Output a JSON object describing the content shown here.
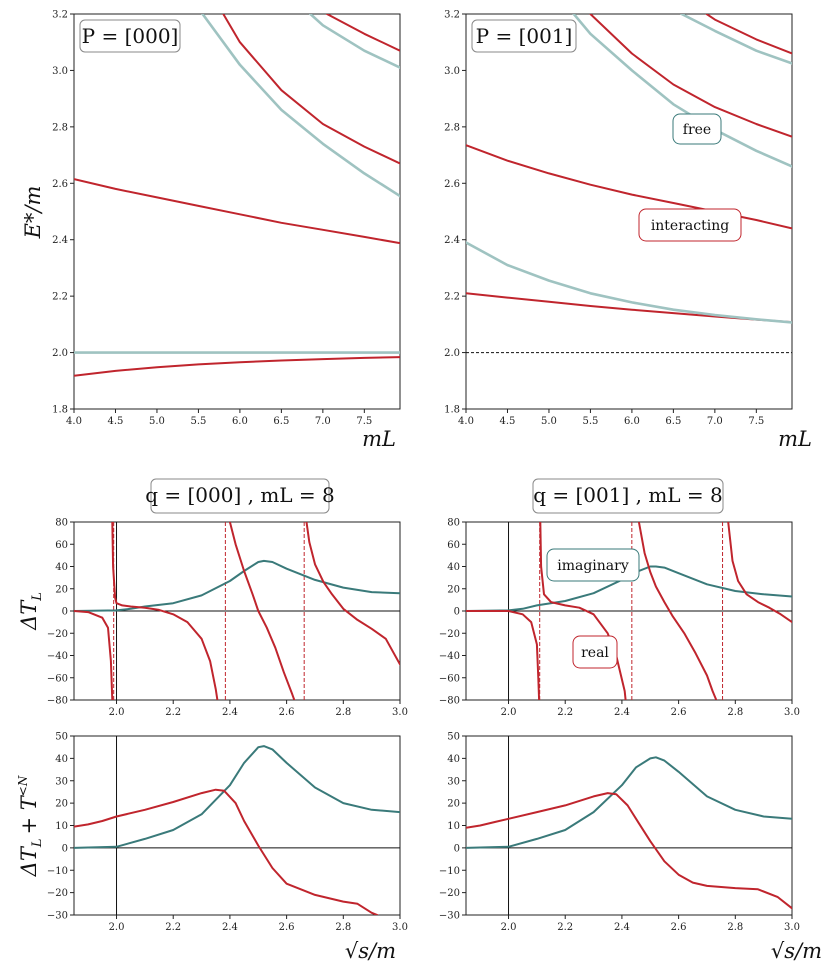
{
  "colors": {
    "interacting": "#c0252d",
    "free": "#9fc3c1",
    "imag": "#3a7a7a",
    "frame": "#222222",
    "thresh": "#111111"
  },
  "labels": {
    "ylabel_top": "E*/m",
    "ylabel_mid": "ΔT",
    "ylabel_mid_sub": "L",
    "ylabel_bot": "ΔT",
    "ylabel_bot_sub": "L",
    "ylabel_bot_plus": "+ T",
    "ylabel_bot_sup": "<N",
    "xlabel_top_left": "mL",
    "xlabel_top_right": "mL",
    "xlabel_bot_left": "√s/m",
    "xlabel_bot_right": "√s/m",
    "title_p000": "P = [000]",
    "title_p001": "P = [001]",
    "title_q000": "q = [000] , mL = 8",
    "title_q001": "q = [001] , mL = 8",
    "annot_free": "free",
    "annot_interacting": "interacting",
    "annot_imaginary": "imaginary",
    "annot_real": "real"
  },
  "chart_data": [
    {
      "id": "spectrum_P000",
      "type": "line",
      "title": "P = [000]",
      "xlabel": "mL",
      "ylabel": "E*/m",
      "xlim": [
        4.0,
        7.93
      ],
      "ylim": [
        1.8,
        3.2
      ],
      "xticks": [
        "4.0",
        "4.5",
        "5.0",
        "5.5",
        "6.0",
        "6.5",
        "7.0",
        "7.5"
      ],
      "yticks": [
        "1.8",
        "2.0",
        "2.2",
        "2.4",
        "2.6",
        "2.8",
        "3.0",
        "3.2"
      ],
      "threshold": 2.0,
      "series": [
        {
          "name": "interacting",
          "x": [
            4.0,
            4.5,
            5.0,
            5.5,
            6.0,
            6.5,
            7.0,
            7.5,
            7.93
          ],
          "values": [
            1.918,
            1.935,
            1.948,
            1.958,
            1.966,
            1.972,
            1.977,
            1.981,
            1.984
          ]
        },
        {
          "name": "free",
          "x": [
            4.0,
            7.93
          ],
          "values": [
            2.0,
            2.0
          ]
        },
        {
          "name": "interacting",
          "x": [
            4.0,
            4.5,
            5.0,
            5.5,
            6.0,
            6.5,
            7.0,
            7.5,
            7.93
          ],
          "values": [
            2.615,
            2.58,
            2.55,
            2.52,
            2.49,
            2.46,
            2.435,
            2.41,
            2.388
          ]
        },
        {
          "name": "free",
          "x": [
            5.55,
            6.0,
            6.5,
            7.0,
            7.5,
            7.93
          ],
          "values": [
            3.2,
            3.02,
            2.86,
            2.74,
            2.635,
            2.555
          ]
        },
        {
          "name": "interacting",
          "x": [
            5.8,
            6.0,
            6.5,
            7.0,
            7.5,
            7.93
          ],
          "values": [
            3.2,
            3.1,
            2.93,
            2.81,
            2.73,
            2.67
          ]
        },
        {
          "name": "free",
          "x": [
            6.85,
            7.0,
            7.5,
            7.93
          ],
          "values": [
            3.2,
            3.16,
            3.07,
            3.01
          ]
        },
        {
          "name": "interacting",
          "x": [
            7.05,
            7.5,
            7.93
          ],
          "values": [
            3.2,
            3.13,
            3.07
          ]
        }
      ]
    },
    {
      "id": "spectrum_P001",
      "type": "line",
      "title": "P = [001]",
      "xlabel": "mL",
      "ylabel": "E*/m",
      "xlim": [
        4.0,
        7.93
      ],
      "ylim": [
        1.8,
        3.2
      ],
      "xticks": [
        "4.0",
        "4.5",
        "5.0",
        "5.5",
        "6.0",
        "6.5",
        "7.0",
        "7.5"
      ],
      "yticks": [
        "1.8",
        "2.0",
        "2.2",
        "2.4",
        "2.6",
        "2.8",
        "3.0",
        "3.2"
      ],
      "threshold": 2.0,
      "series": [
        {
          "name": "interacting",
          "x": [
            4.0,
            4.5,
            5.0,
            5.5,
            6.0,
            6.5,
            7.0,
            7.5,
            7.93
          ],
          "values": [
            2.21,
            2.195,
            2.18,
            2.165,
            2.152,
            2.14,
            2.128,
            2.117,
            2.108
          ]
        },
        {
          "name": "free",
          "x": [
            4.0,
            4.5,
            5.0,
            5.5,
            6.0,
            6.5,
            7.0,
            7.5,
            7.93
          ],
          "values": [
            2.39,
            2.31,
            2.255,
            2.21,
            2.178,
            2.152,
            2.133,
            2.118,
            2.107
          ]
        },
        {
          "name": "interacting",
          "x": [
            4.0,
            4.5,
            5.0,
            5.5,
            6.0,
            6.5,
            7.0,
            7.5,
            7.93
          ],
          "values": [
            2.735,
            2.68,
            2.635,
            2.595,
            2.56,
            2.53,
            2.5,
            2.47,
            2.44
          ]
        },
        {
          "name": "free",
          "x": [
            5.3,
            5.5,
            6.0,
            6.5,
            7.0,
            7.5,
            7.93
          ],
          "values": [
            3.2,
            3.13,
            3.0,
            2.88,
            2.79,
            2.715,
            2.66
          ]
        },
        {
          "name": "interacting",
          "x": [
            5.5,
            6.0,
            6.5,
            7.0,
            7.5,
            7.93
          ],
          "values": [
            3.2,
            3.06,
            2.95,
            2.87,
            2.81,
            2.765
          ]
        },
        {
          "name": "free",
          "x": [
            6.6,
            7.0,
            7.5,
            7.93
          ],
          "values": [
            3.2,
            3.14,
            3.07,
            3.025
          ]
        },
        {
          "name": "interacting",
          "x": [
            6.9,
            7.0,
            7.5,
            7.93
          ],
          "values": [
            3.2,
            3.18,
            3.11,
            3.06
          ]
        }
      ]
    },
    {
      "id": "deltaT_q000",
      "type": "line",
      "title": "q = [000] , mL = 8",
      "xlabel": "",
      "ylabel": "ΔT_L",
      "xlim": [
        1.85,
        3.0
      ],
      "ylim": [
        -80,
        80
      ],
      "xticks": [
        "2.0",
        "2.2",
        "2.4",
        "2.6",
        "2.8",
        "3.0"
      ],
      "yticks": [
        "−80",
        "−60",
        "−40",
        "−20",
        "0",
        "20",
        "40",
        "60",
        "80"
      ],
      "vlines_solid": [
        2.0
      ],
      "vlines_dashed": [
        1.99,
        2.384,
        2.662
      ],
      "series": [
        {
          "name": "imaginary",
          "x": [
            1.85,
            2.0,
            2.05,
            2.1,
            2.2,
            2.3,
            2.4,
            2.45,
            2.5,
            2.52,
            2.55,
            2.6,
            2.7,
            2.8,
            2.9,
            3.0
          ],
          "values": [
            0,
            0.5,
            2,
            4,
            7,
            14,
            27,
            36,
            44,
            45,
            44,
            38,
            28,
            21,
            17,
            16
          ]
        },
        {
          "name": "real",
          "x": [
            1.85,
            1.9,
            1.95,
            1.97,
            1.98,
            1.985
          ],
          "values": [
            0,
            -1,
            -6,
            -15,
            -45,
            -80
          ]
        },
        {
          "name": "real",
          "x": [
            1.985,
            1.988,
            1.995,
            2.0,
            2.02,
            2.05,
            2.1,
            2.15,
            2.2,
            2.25,
            2.3,
            2.33,
            2.35,
            2.356
          ],
          "values": [
            80,
            40,
            12,
            7,
            5,
            4,
            3,
            1,
            -3,
            -10,
            -25,
            -45,
            -70,
            -80
          ]
        },
        {
          "name": "real",
          "x": [
            2.4,
            2.42,
            2.45,
            2.48,
            2.5,
            2.53,
            2.56,
            2.59,
            2.62,
            2.627
          ],
          "values": [
            80,
            60,
            36,
            15,
            0,
            -15,
            -33,
            -55,
            -75,
            -80
          ]
        },
        {
          "name": "real",
          "x": [
            2.67,
            2.68,
            2.7,
            2.73,
            2.76,
            2.8,
            2.85,
            2.9,
            2.95,
            3.0
          ],
          "values": [
            80,
            62,
            42,
            26,
            15,
            2,
            -8,
            -16,
            -25,
            -48
          ]
        }
      ]
    },
    {
      "id": "deltaT_q001",
      "type": "line",
      "title": "q = [001] , mL = 8",
      "xlabel": "",
      "ylabel": "ΔT_L",
      "xlim": [
        1.85,
        3.0
      ],
      "ylim": [
        -80,
        80
      ],
      "xticks": [
        "2.0",
        "2.2",
        "2.4",
        "2.6",
        "2.8",
        "3.0"
      ],
      "yticks": [
        "−80",
        "−60",
        "−40",
        "−20",
        "0",
        "20",
        "40",
        "60",
        "80"
      ],
      "vlines_solid": [
        2.0
      ],
      "vlines_dashed": [
        2.11,
        2.435,
        2.755
      ],
      "series": [
        {
          "name": "imaginary",
          "x": [
            1.85,
            2.0,
            2.05,
            2.1,
            2.2,
            2.3,
            2.4,
            2.45,
            2.5,
            2.52,
            2.55,
            2.6,
            2.7,
            2.8,
            2.9,
            3.0
          ],
          "values": [
            0,
            0.5,
            2,
            5,
            9,
            16,
            28,
            35,
            40,
            40,
            39,
            34,
            24,
            18,
            15,
            13
          ]
        },
        {
          "name": "real",
          "x": [
            1.85,
            2.0,
            2.05,
            2.08,
            2.1,
            2.105,
            2.108
          ],
          "values": [
            0,
            0,
            -3,
            -10,
            -30,
            -60,
            -80
          ]
        },
        {
          "name": "real",
          "x": [
            2.112,
            2.115,
            2.125,
            2.15,
            2.2,
            2.25,
            2.3,
            2.35,
            2.38,
            2.41,
            2.413
          ],
          "values": [
            80,
            40,
            15,
            8,
            5,
            3,
            -3,
            -20,
            -40,
            -72,
            -80
          ]
        },
        {
          "name": "real",
          "x": [
            2.46,
            2.48,
            2.5,
            2.52,
            2.55,
            2.58,
            2.62,
            2.66,
            2.7,
            2.72,
            2.733
          ],
          "values": [
            80,
            52,
            35,
            22,
            8,
            -5,
            -20,
            -38,
            -58,
            -72,
            -80
          ]
        },
        {
          "name": "real",
          "x": [
            2.775,
            2.79,
            2.81,
            2.84,
            2.88,
            2.92,
            2.96,
            3.0
          ],
          "values": [
            80,
            45,
            27,
            15,
            8,
            3,
            -3,
            -10
          ]
        }
      ]
    },
    {
      "id": "deltaT_plus_q000",
      "type": "line",
      "title": "",
      "xlabel": "√s/m",
      "ylabel": "ΔT_L + T_L^<N",
      "xlim": [
        1.85,
        3.0
      ],
      "ylim": [
        -30,
        50
      ],
      "xticks": [
        "2.0",
        "2.2",
        "2.4",
        "2.6",
        "2.8",
        "3.0"
      ],
      "yticks": [
        "−30",
        "−20",
        "−10",
        "0",
        "10",
        "20",
        "30",
        "40",
        "50"
      ],
      "vlines_solid": [
        2.0
      ],
      "series": [
        {
          "name": "imaginary",
          "x": [
            1.85,
            2.0,
            2.1,
            2.2,
            2.3,
            2.4,
            2.45,
            2.5,
            2.52,
            2.55,
            2.6,
            2.7,
            2.8,
            2.9,
            3.0
          ],
          "values": [
            0,
            0.5,
            4,
            8,
            15,
            28,
            38,
            45,
            45.5,
            44,
            38,
            27,
            20,
            17,
            16
          ]
        },
        {
          "name": "real",
          "x": [
            1.85,
            1.9,
            1.95,
            2.0,
            2.1,
            2.2,
            2.3,
            2.35,
            2.38,
            2.42,
            2.45,
            2.5,
            2.55,
            2.6,
            2.7,
            2.8,
            2.85,
            2.9,
            2.92
          ],
          "values": [
            9.5,
            10.5,
            12,
            14,
            17,
            20.5,
            24.5,
            26,
            25.5,
            20,
            12,
            1,
            -9,
            -16,
            -21,
            -24,
            -25,
            -29,
            -30
          ]
        }
      ]
    },
    {
      "id": "deltaT_plus_q001",
      "type": "line",
      "title": "",
      "xlabel": "√s/m",
      "ylabel": "ΔT_L + T_L^<N",
      "xlim": [
        1.85,
        3.0
      ],
      "ylim": [
        -30,
        50
      ],
      "xticks": [
        "2.0",
        "2.2",
        "2.4",
        "2.6",
        "2.8",
        "3.0"
      ],
      "yticks": [
        "−30",
        "−20",
        "−10",
        "0",
        "10",
        "20",
        "30",
        "40",
        "50"
      ],
      "vlines_solid": [
        2.0
      ],
      "series": [
        {
          "name": "imaginary",
          "x": [
            1.85,
            2.0,
            2.1,
            2.2,
            2.3,
            2.4,
            2.45,
            2.5,
            2.52,
            2.55,
            2.6,
            2.7,
            2.8,
            2.9,
            3.0
          ],
          "values": [
            0,
            0.5,
            4,
            8,
            16,
            28,
            36,
            40,
            40.5,
            39,
            34,
            23,
            17,
            14,
            13
          ]
        },
        {
          "name": "real",
          "x": [
            1.85,
            1.9,
            1.95,
            2.0,
            2.1,
            2.2,
            2.3,
            2.35,
            2.38,
            2.42,
            2.46,
            2.5,
            2.55,
            2.6,
            2.65,
            2.7,
            2.8,
            2.88,
            2.95,
            3.0
          ],
          "values": [
            9,
            10,
            11.5,
            13,
            16,
            19,
            23,
            24.5,
            24,
            19,
            11,
            3,
            -6,
            -12,
            -15.5,
            -17,
            -18,
            -18.5,
            -22,
            -27
          ]
        }
      ]
    }
  ]
}
